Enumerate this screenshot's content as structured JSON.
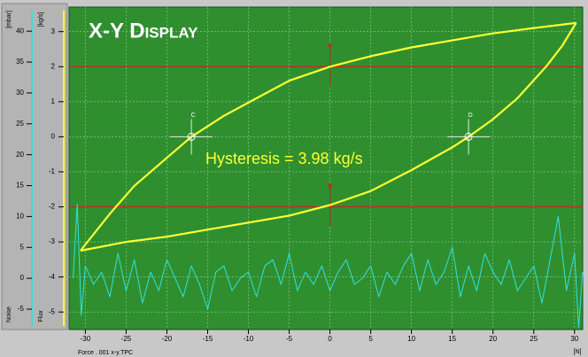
{
  "chart_data": {
    "type": "line",
    "title": "X-Y Display",
    "annotation": "Hysteresis = 3.98 kg/s",
    "x_label": "[N]",
    "x_caption": "Force . 001 x-y.TPC",
    "y_unit": "[kg/s]",
    "y_name": "Flux",
    "y2_unit": "[mbar]",
    "y2_name": "Noise",
    "xlim": [
      -32,
      31
    ],
    "xticks": [
      -30,
      -25,
      -20,
      -15,
      -10,
      -5,
      0,
      5,
      10,
      15,
      20,
      25,
      30
    ],
    "ylim": [
      -5.5,
      3.7
    ],
    "yticks": [
      -5,
      -4,
      -3,
      -2,
      -1,
      0,
      1,
      2,
      3
    ],
    "y2lim": [
      -8.3,
      43.9
    ],
    "y2ticks": [
      -5,
      0,
      5,
      10,
      15,
      20,
      25,
      30,
      35,
      40
    ],
    "grid": true,
    "series": [
      {
        "color": "#ffff33",
        "x": [
          -30.6,
          -27,
          -24,
          -20,
          -17,
          -13,
          -9,
          -5,
          0,
          5,
          10,
          15,
          20,
          25,
          30.2
        ],
        "values": [
          -3.25,
          -2.2,
          -1.4,
          -0.6,
          0,
          0.6,
          1.1,
          1.6,
          2.0,
          2.3,
          2.55,
          2.75,
          2.95,
          3.1,
          3.25
        ]
      },
      {
        "color": "#ffff33",
        "x": [
          -30.6,
          -25,
          -20,
          -15,
          -10,
          -5,
          0,
          5,
          10,
          15,
          17,
          20,
          23,
          26.5,
          28.5,
          30.2
        ],
        "values": [
          -3.25,
          -3.0,
          -2.85,
          -2.65,
          -2.45,
          -2.25,
          -1.95,
          -1.55,
          -0.95,
          -0.3,
          0,
          0.5,
          1.1,
          2.0,
          2.6,
          3.25
        ]
      },
      {
        "color": "#33e0e0",
        "axis": "y2",
        "x": [
          -31.5,
          -31,
          -30.5,
          -30,
          -29,
          -28,
          -27,
          -26,
          -25,
          -24,
          -23,
          -22,
          -21,
          -20,
          -19,
          -18,
          -17,
          -16,
          -15,
          -14,
          -13,
          -12,
          -11,
          -10,
          -9,
          -8,
          -7,
          -6,
          -5,
          -4,
          -3,
          -2,
          -1,
          0,
          1,
          2,
          3,
          4,
          5,
          6,
          7,
          8,
          9,
          10,
          11,
          12,
          13,
          14,
          15,
          16,
          17,
          18,
          19,
          20,
          21,
          22,
          23,
          24,
          25,
          26,
          27,
          28,
          29,
          30,
          30.5,
          31
        ],
        "values": [
          0,
          12,
          -6,
          2,
          -1,
          1,
          -3,
          4,
          -2,
          3,
          -4,
          1,
          -2,
          3,
          0,
          -3,
          2,
          -1,
          -5,
          1,
          2,
          -2,
          0,
          1,
          -3,
          2,
          3,
          -1,
          4,
          -2,
          1,
          -1,
          2,
          -2,
          1,
          3,
          -1,
          0,
          2,
          -3,
          1,
          -1,
          2,
          4,
          -2,
          3,
          -1,
          1,
          5,
          -3,
          2,
          -2,
          4,
          1,
          -1,
          3,
          -2,
          0,
          2,
          -4,
          3,
          10,
          -2,
          4,
          -8,
          1
        ]
      }
    ],
    "reference_lines": [
      {
        "x": 0,
        "y": 2
      },
      {
        "x": 0,
        "y": -2
      }
    ],
    "reference_color": "#cc2222",
    "cursors": [
      {
        "label": "C",
        "x": -17,
        "y": 0
      },
      {
        "label": "D",
        "x": 17,
        "y": 0
      }
    ]
  }
}
